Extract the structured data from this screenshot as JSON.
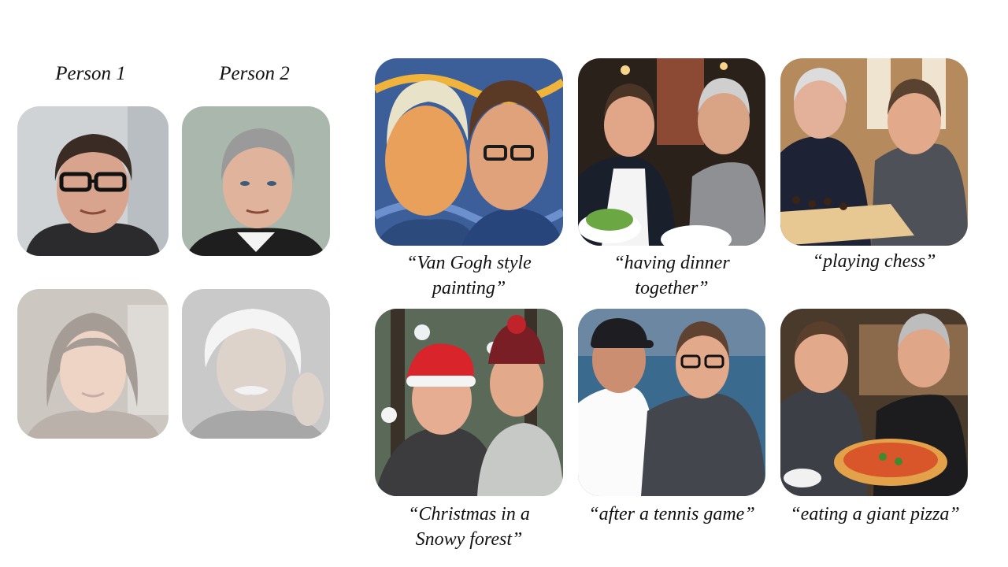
{
  "reference": {
    "person1_label": "Person 1",
    "person2_label": "Person 2"
  },
  "captions": [
    "“Van Gogh style painting”",
    "“having dinner together”",
    "“playing chess”",
    "“Christmas in a Snowy forest”",
    "“after a tennis game”",
    "“eating a giant pizza”"
  ],
  "caption_lines": {
    "c1_l1": "“Van Gogh style",
    "c1_l2": "painting”",
    "c2_l1": "“having dinner",
    "c2_l2": "together”",
    "c3_l1": "“playing chess”",
    "c4_l1": "“Christmas in a",
    "c4_l2": "Snowy forest”",
    "c5_l1": "“after a tennis game”",
    "c6_l1": "“eating a giant pizza”"
  }
}
